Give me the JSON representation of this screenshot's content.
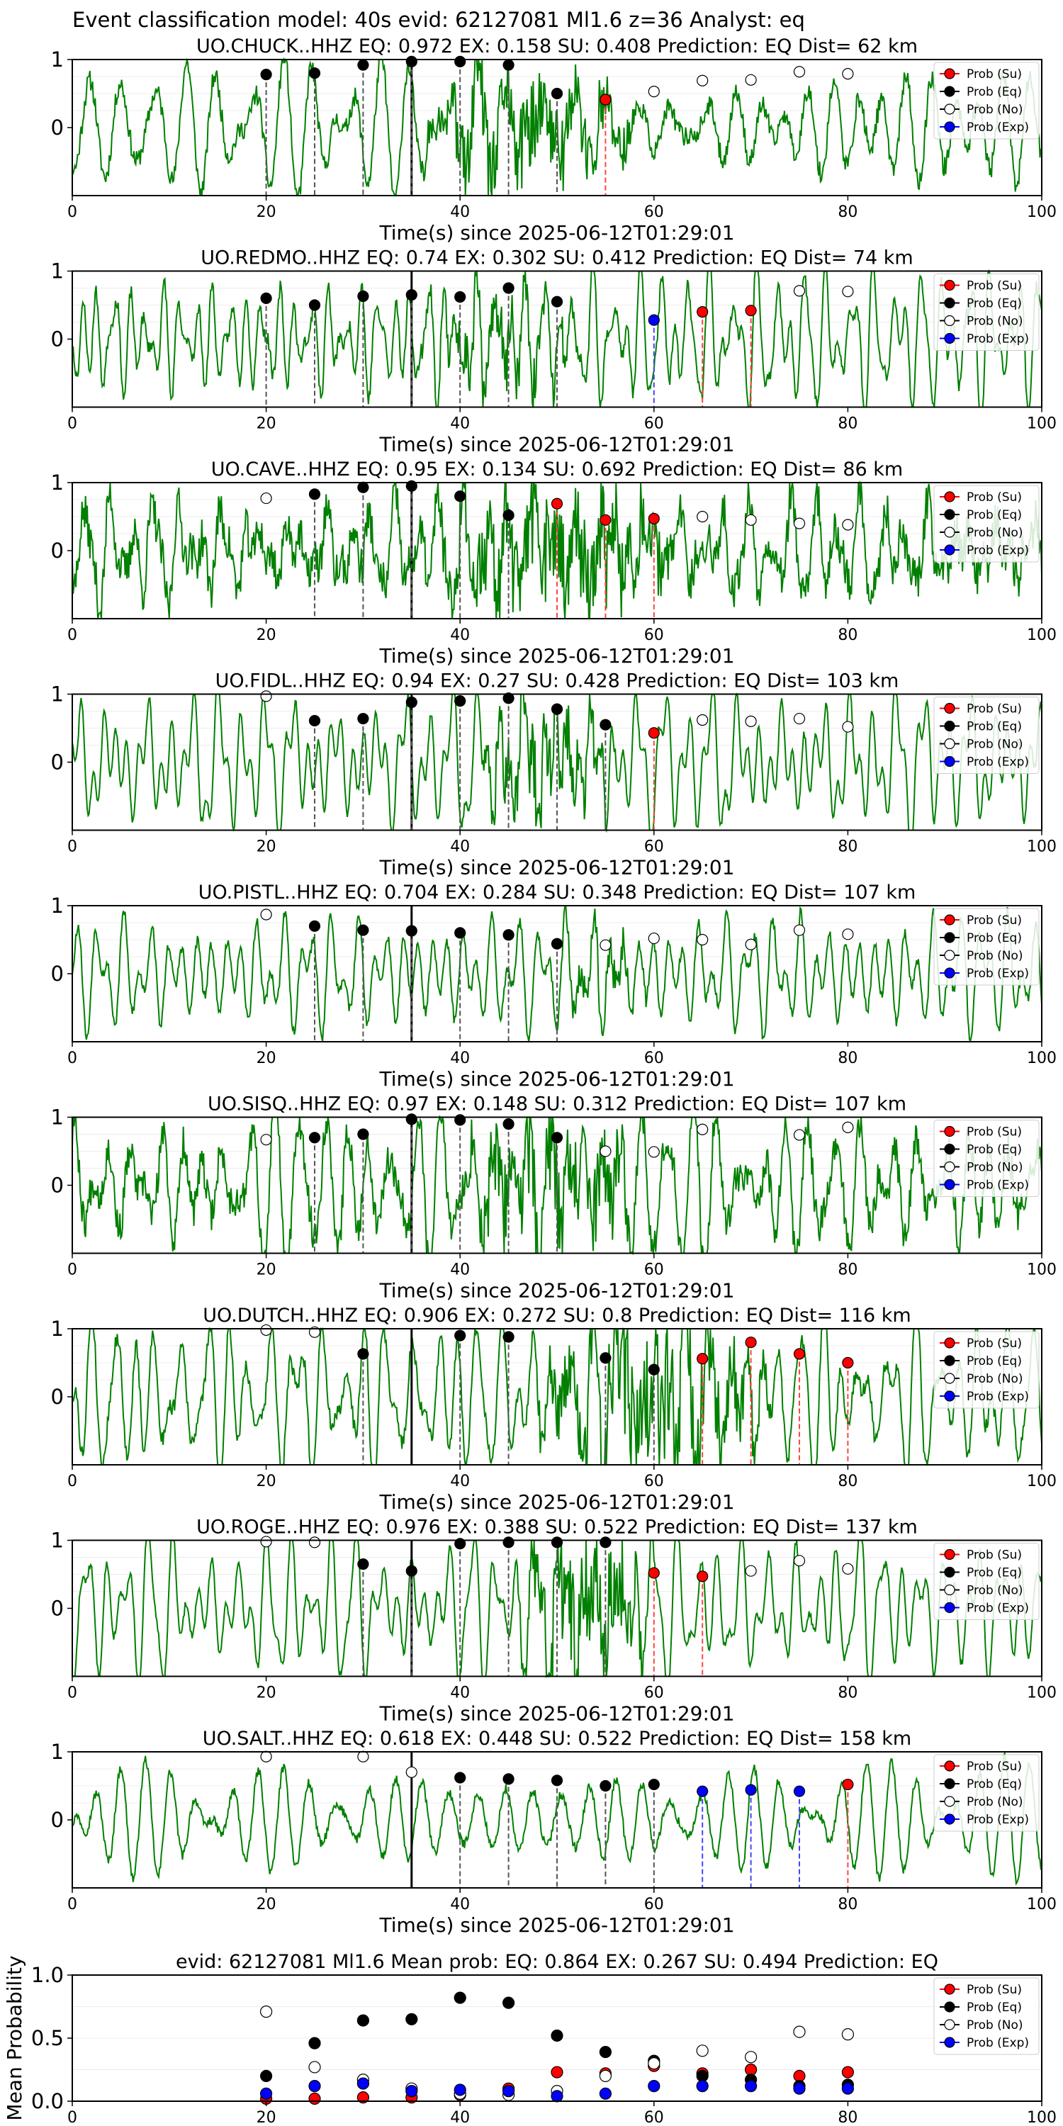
{
  "figure_title": "Event classification model: 40s evid: 62127081 Ml1.6 z=36 Analyst: eq",
  "legend_labels": [
    "Prob (Su)",
    "Prob (Eq)",
    "Prob (No)",
    "Prob (Exp)"
  ],
  "colors": {
    "su": "#ff0000",
    "eq": "#000000",
    "no": "#ffffff",
    "exp": "#0000ff",
    "waveform": "#008000"
  },
  "chart_data": [
    {
      "type": "scatter",
      "station": "UO.CHUCK..HHZ",
      "title": "UO.CHUCK..HHZ   EQ: 0.972  EX: 0.158  SU: 0.408   Prediction: EQ    Dist= 62 km",
      "xlabel": "Time(s) since 2025-06-12T01:29:01",
      "x_ticks": [
        "0",
        "20",
        "40",
        "60",
        "80",
        "100"
      ],
      "y_ticks": [
        "0",
        "1"
      ],
      "xlim": [
        0,
        100
      ],
      "ylim": [
        -1,
        1
      ],
      "p_pick": 35,
      "seed": 11,
      "noise": 0.15,
      "burst": {
        "start": 36,
        "end": 58,
        "amp": 0.5
      },
      "points": [
        {
          "t": 20,
          "cls": "eq",
          "p": 0.78
        },
        {
          "t": 25,
          "cls": "eq",
          "p": 0.8
        },
        {
          "t": 30,
          "cls": "eq",
          "p": 0.92
        },
        {
          "t": 35,
          "cls": "eq",
          "p": 0.97
        },
        {
          "t": 40,
          "cls": "eq",
          "p": 0.97
        },
        {
          "t": 45,
          "cls": "eq",
          "p": 0.92
        },
        {
          "t": 50,
          "cls": "eq",
          "p": 0.5
        },
        {
          "t": 55,
          "cls": "su",
          "p": 0.41
        },
        {
          "t": 60,
          "cls": "no",
          "p": 0.53
        },
        {
          "t": 65,
          "cls": "no",
          "p": 0.69
        },
        {
          "t": 70,
          "cls": "no",
          "p": 0.7
        },
        {
          "t": 75,
          "cls": "no",
          "p": 0.82
        },
        {
          "t": 80,
          "cls": "no",
          "p": 0.79
        }
      ]
    },
    {
      "type": "scatter",
      "station": "UO.REDMO..HHZ",
      "title": "UO.REDMO..HHZ   EQ: 0.74  EX: 0.302  SU: 0.412   Prediction: EQ    Dist= 74 km",
      "xlabel": "Time(s) since 2025-06-12T01:29:01",
      "x_ticks": [
        "0",
        "20",
        "40",
        "60",
        "80",
        "100"
      ],
      "y_ticks": [
        "0",
        "1"
      ],
      "xlim": [
        0,
        100
      ],
      "ylim": [
        -1,
        1
      ],
      "p_pick": 35,
      "seed": 23,
      "noise": 0.1,
      "burst": {
        "start": 36,
        "end": 52,
        "amp": 0.3
      },
      "points": [
        {
          "t": 20,
          "cls": "eq",
          "p": 0.6
        },
        {
          "t": 25,
          "cls": "eq",
          "p": 0.5
        },
        {
          "t": 30,
          "cls": "eq",
          "p": 0.63
        },
        {
          "t": 35,
          "cls": "eq",
          "p": 0.65
        },
        {
          "t": 40,
          "cls": "eq",
          "p": 0.62
        },
        {
          "t": 45,
          "cls": "eq",
          "p": 0.75
        },
        {
          "t": 50,
          "cls": "eq",
          "p": 0.55
        },
        {
          "t": 60,
          "cls": "exp",
          "p": 0.28
        },
        {
          "t": 65,
          "cls": "su",
          "p": 0.4
        },
        {
          "t": 70,
          "cls": "su",
          "p": 0.42
        },
        {
          "t": 75,
          "cls": "no",
          "p": 0.71
        },
        {
          "t": 80,
          "cls": "no",
          "p": 0.7
        }
      ]
    },
    {
      "type": "scatter",
      "station": "UO.CAVE..HHZ",
      "title": "UO.CAVE..HHZ   EQ: 0.95  EX: 0.134  SU: 0.692   Prediction: EQ    Dist= 86 km",
      "xlabel": "Time(s) since 2025-06-12T01:29:01",
      "x_ticks": [
        "0",
        "20",
        "40",
        "60",
        "80",
        "100"
      ],
      "y_ticks": [
        "0",
        "1"
      ],
      "xlim": [
        0,
        100
      ],
      "ylim": [
        -1,
        1
      ],
      "p_pick": 35,
      "seed": 37,
      "noise": 0.3,
      "burst": {
        "start": 38,
        "end": 62,
        "amp": 0.55
      },
      "points": [
        {
          "t": 20,
          "cls": "no",
          "p": 0.77
        },
        {
          "t": 25,
          "cls": "eq",
          "p": 0.83
        },
        {
          "t": 30,
          "cls": "eq",
          "p": 0.93
        },
        {
          "t": 35,
          "cls": "eq",
          "p": 0.95
        },
        {
          "t": 40,
          "cls": "eq",
          "p": 0.8
        },
        {
          "t": 45,
          "cls": "eq",
          "p": 0.52
        },
        {
          "t": 50,
          "cls": "su",
          "p": 0.69
        },
        {
          "t": 55,
          "cls": "su",
          "p": 0.45
        },
        {
          "t": 60,
          "cls": "su",
          "p": 0.47
        },
        {
          "t": 65,
          "cls": "no",
          "p": 0.5
        },
        {
          "t": 70,
          "cls": "no",
          "p": 0.45
        },
        {
          "t": 75,
          "cls": "no",
          "p": 0.4
        },
        {
          "t": 80,
          "cls": "no",
          "p": 0.38
        }
      ]
    },
    {
      "type": "scatter",
      "station": "UO.FIDL..HHZ",
      "title": "UO.FIDL..HHZ   EQ: 0.94  EX: 0.27  SU: 0.428   Prediction: EQ    Dist= 103 km",
      "xlabel": "Time(s) since 2025-06-12T01:29:01",
      "x_ticks": [
        "0",
        "20",
        "40",
        "60",
        "80",
        "100"
      ],
      "y_ticks": [
        "0",
        "1"
      ],
      "xlim": [
        0,
        100
      ],
      "ylim": [
        -1,
        1
      ],
      "p_pick": 35,
      "seed": 41,
      "noise": 0.05,
      "burst": {
        "start": 41,
        "end": 56,
        "amp": 0.4
      },
      "points": [
        {
          "t": 20,
          "cls": "no",
          "p": 0.97
        },
        {
          "t": 25,
          "cls": "eq",
          "p": 0.61
        },
        {
          "t": 30,
          "cls": "eq",
          "p": 0.64
        },
        {
          "t": 35,
          "cls": "eq",
          "p": 0.88
        },
        {
          "t": 40,
          "cls": "eq",
          "p": 0.9
        },
        {
          "t": 45,
          "cls": "eq",
          "p": 0.94
        },
        {
          "t": 50,
          "cls": "eq",
          "p": 0.78
        },
        {
          "t": 55,
          "cls": "eq",
          "p": 0.55
        },
        {
          "t": 60,
          "cls": "su",
          "p": 0.43
        },
        {
          "t": 65,
          "cls": "no",
          "p": 0.62
        },
        {
          "t": 70,
          "cls": "no",
          "p": 0.6
        },
        {
          "t": 75,
          "cls": "no",
          "p": 0.64
        },
        {
          "t": 80,
          "cls": "no",
          "p": 0.52
        }
      ]
    },
    {
      "type": "scatter",
      "station": "UO.PISTL..HHZ",
      "title": "UO.PISTL..HHZ   EQ: 0.704  EX: 0.284  SU: 0.348   Prediction: EQ    Dist= 107 km",
      "xlabel": "Time(s) since 2025-06-12T01:29:01",
      "x_ticks": [
        "0",
        "20",
        "40",
        "60",
        "80",
        "100"
      ],
      "y_ticks": [
        "0",
        "1"
      ],
      "xlim": [
        0,
        100
      ],
      "ylim": [
        -1,
        1
      ],
      "p_pick": 35,
      "seed": 53,
      "noise": 0.08,
      "burst": {
        "start": 50,
        "end": 60,
        "amp": 0.2
      },
      "points": [
        {
          "t": 20,
          "cls": "no",
          "p": 0.87
        },
        {
          "t": 25,
          "cls": "eq",
          "p": 0.7
        },
        {
          "t": 30,
          "cls": "eq",
          "p": 0.64
        },
        {
          "t": 35,
          "cls": "eq",
          "p": 0.63
        },
        {
          "t": 40,
          "cls": "eq",
          "p": 0.6
        },
        {
          "t": 45,
          "cls": "eq",
          "p": 0.57
        },
        {
          "t": 50,
          "cls": "eq",
          "p": 0.44
        },
        {
          "t": 55,
          "cls": "no",
          "p": 0.42
        },
        {
          "t": 60,
          "cls": "no",
          "p": 0.52
        },
        {
          "t": 65,
          "cls": "no",
          "p": 0.5
        },
        {
          "t": 70,
          "cls": "no",
          "p": 0.43
        },
        {
          "t": 75,
          "cls": "no",
          "p": 0.64
        },
        {
          "t": 80,
          "cls": "no",
          "p": 0.58
        }
      ]
    },
    {
      "type": "scatter",
      "station": "UO.SISQ..HHZ",
      "title": "UO.SISQ..HHZ   EQ: 0.97  EX: 0.148  SU: 0.312   Prediction: EQ    Dist= 107 km",
      "xlabel": "Time(s) since 2025-06-12T01:29:01",
      "x_ticks": [
        "0",
        "20",
        "40",
        "60",
        "80",
        "100"
      ],
      "y_ticks": [
        "0",
        "1"
      ],
      "xlim": [
        0,
        100
      ],
      "ylim": [
        -1,
        1
      ],
      "p_pick": 35,
      "seed": 67,
      "noise": 0.25,
      "burst": {
        "start": 40,
        "end": 58,
        "amp": 0.5
      },
      "points": [
        {
          "t": 20,
          "cls": "no",
          "p": 0.67
        },
        {
          "t": 25,
          "cls": "eq",
          "p": 0.7
        },
        {
          "t": 30,
          "cls": "eq",
          "p": 0.75
        },
        {
          "t": 35,
          "cls": "eq",
          "p": 0.97
        },
        {
          "t": 40,
          "cls": "eq",
          "p": 0.96
        },
        {
          "t": 45,
          "cls": "eq",
          "p": 0.9
        },
        {
          "t": 50,
          "cls": "eq",
          "p": 0.7
        },
        {
          "t": 55,
          "cls": "no",
          "p": 0.5
        },
        {
          "t": 60,
          "cls": "no",
          "p": 0.49
        },
        {
          "t": 65,
          "cls": "no",
          "p": 0.82
        },
        {
          "t": 75,
          "cls": "no",
          "p": 0.74
        },
        {
          "t": 80,
          "cls": "no",
          "p": 0.85
        }
      ]
    },
    {
      "type": "scatter",
      "station": "UO.DUTCH..HHZ",
      "title": "UO.DUTCH..HHZ   EQ: 0.906  EX: 0.272  SU: 0.8   Prediction: EQ    Dist= 116 km",
      "xlabel": "Time(s) since 2025-06-12T01:29:01",
      "x_ticks": [
        "0",
        "20",
        "40",
        "60",
        "80",
        "100"
      ],
      "y_ticks": [
        "0",
        "1"
      ],
      "xlim": [
        0,
        100
      ],
      "ylim": [
        -1,
        1
      ],
      "p_pick": 35,
      "seed": 79,
      "noise": 0.12,
      "burst": {
        "start": 48,
        "end": 72,
        "amp": 0.7
      },
      "points": [
        {
          "t": 20,
          "cls": "no",
          "p": 0.98
        },
        {
          "t": 25,
          "cls": "no",
          "p": 0.95
        },
        {
          "t": 30,
          "cls": "eq",
          "p": 0.63
        },
        {
          "t": 40,
          "cls": "eq",
          "p": 0.9
        },
        {
          "t": 45,
          "cls": "eq",
          "p": 0.88
        },
        {
          "t": 55,
          "cls": "eq",
          "p": 0.57
        },
        {
          "t": 60,
          "cls": "eq",
          "p": 0.4
        },
        {
          "t": 65,
          "cls": "su",
          "p": 0.56
        },
        {
          "t": 70,
          "cls": "su",
          "p": 0.8
        },
        {
          "t": 75,
          "cls": "su",
          "p": 0.63
        },
        {
          "t": 80,
          "cls": "su",
          "p": 0.5
        }
      ]
    },
    {
      "type": "scatter",
      "station": "UO.ROGE..HHZ",
      "title": "UO.ROGE..HHZ   EQ: 0.976  EX: 0.388  SU: 0.522   Prediction: EQ    Dist= 137 km",
      "xlabel": "Time(s) since 2025-06-12T01:29:01",
      "x_ticks": [
        "0",
        "20",
        "40",
        "60",
        "80",
        "100"
      ],
      "y_ticks": [
        "0",
        "1"
      ],
      "xlim": [
        0,
        100
      ],
      "ylim": [
        -1,
        1
      ],
      "p_pick": 35,
      "seed": 83,
      "noise": 0.06,
      "burst": {
        "start": 46,
        "end": 60,
        "amp": 0.6
      },
      "points": [
        {
          "t": 20,
          "cls": "no",
          "p": 0.98
        },
        {
          "t": 25,
          "cls": "no",
          "p": 0.97
        },
        {
          "t": 30,
          "cls": "eq",
          "p": 0.65
        },
        {
          "t": 35,
          "cls": "eq",
          "p": 0.55
        },
        {
          "t": 40,
          "cls": "eq",
          "p": 0.95
        },
        {
          "t": 45,
          "cls": "eq",
          "p": 0.97
        },
        {
          "t": 50,
          "cls": "eq",
          "p": 0.97
        },
        {
          "t": 55,
          "cls": "eq",
          "p": 0.97
        },
        {
          "t": 60,
          "cls": "su",
          "p": 0.52
        },
        {
          "t": 65,
          "cls": "su",
          "p": 0.47
        },
        {
          "t": 70,
          "cls": "no",
          "p": 0.55
        },
        {
          "t": 75,
          "cls": "no",
          "p": 0.7
        },
        {
          "t": 80,
          "cls": "no",
          "p": 0.58
        }
      ]
    },
    {
      "type": "scatter",
      "station": "UO.SALT..HHZ",
      "title": "UO.SALT..HHZ   EQ: 0.618  EX: 0.448  SU: 0.522   Prediction: EQ    Dist= 158 km",
      "xlabel": "Time(s) since 2025-06-12T01:29:01",
      "x_ticks": [
        "0",
        "20",
        "40",
        "60",
        "80",
        "100"
      ],
      "y_ticks": [
        "0",
        "1"
      ],
      "xlim": [
        0,
        100
      ],
      "ylim": [
        -1,
        1
      ],
      "p_pick": 35,
      "seed": 97,
      "noise": 0.07,
      "burst": {
        "start": 0,
        "end": 0,
        "amp": 0
      },
      "points": [
        {
          "t": 20,
          "cls": "no",
          "p": 0.93
        },
        {
          "t": 30,
          "cls": "no",
          "p": 0.93
        },
        {
          "t": 35,
          "cls": "no",
          "p": 0.7
        },
        {
          "t": 40,
          "cls": "eq",
          "p": 0.62
        },
        {
          "t": 45,
          "cls": "eq",
          "p": 0.6
        },
        {
          "t": 50,
          "cls": "eq",
          "p": 0.58
        },
        {
          "t": 55,
          "cls": "eq",
          "p": 0.5
        },
        {
          "t": 60,
          "cls": "eq",
          "p": 0.52
        },
        {
          "t": 65,
          "cls": "exp",
          "p": 0.42
        },
        {
          "t": 70,
          "cls": "exp",
          "p": 0.44
        },
        {
          "t": 75,
          "cls": "exp",
          "p": 0.42
        },
        {
          "t": 80,
          "cls": "su",
          "p": 0.52
        }
      ]
    },
    {
      "type": "scatter",
      "station": "mean",
      "title": "evid: 62127081   Ml1.6   Mean prob:    EQ: 0.864  EX: 0.267  SU: 0.494   Prediction: EQ",
      "ylabel": "Mean Probability",
      "x_ticks": [
        "0",
        "20",
        "40",
        "60",
        "80",
        "100"
      ],
      "y_ticks": [
        "0.0",
        "0.5",
        "1.0"
      ],
      "xlim": [
        0,
        100
      ],
      "ylim": [
        0,
        1
      ],
      "x": [
        20,
        25,
        30,
        35,
        40,
        45,
        50,
        55,
        60,
        65,
        70,
        75,
        80
      ],
      "series": [
        {
          "name": "Prob (Su)",
          "key": "su",
          "values": [
            0.02,
            0.02,
            0.03,
            0.03,
            0.05,
            0.1,
            0.23,
            0.22,
            0.28,
            0.22,
            0.25,
            0.2,
            0.23
          ]
        },
        {
          "name": "Prob (Eq)",
          "key": "eq",
          "values": [
            0.2,
            0.46,
            0.64,
            0.65,
            0.82,
            0.78,
            0.52,
            0.39,
            0.32,
            0.2,
            0.17,
            0.12,
            0.13
          ]
        },
        {
          "name": "Prob (No)",
          "key": "no",
          "values": [
            0.71,
            0.27,
            0.17,
            0.1,
            0.06,
            0.05,
            0.08,
            0.2,
            0.3,
            0.4,
            0.35,
            0.55,
            0.53
          ]
        },
        {
          "name": "Prob (Exp)",
          "key": "exp",
          "values": [
            0.06,
            0.12,
            0.14,
            0.08,
            0.09,
            0.08,
            0.04,
            0.06,
            0.12,
            0.12,
            0.12,
            0.1,
            0.1
          ]
        }
      ]
    }
  ]
}
